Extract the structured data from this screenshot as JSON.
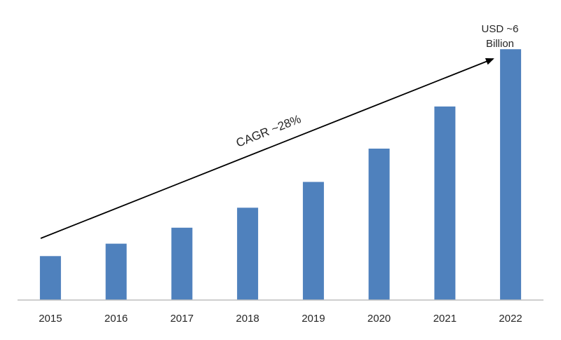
{
  "chart_data": {
    "type": "bar",
    "categories": [
      "2015",
      "2016",
      "2017",
      "2018",
      "2019",
      "2020",
      "2021",
      "2022"
    ],
    "values": [
      0.99,
      1.27,
      1.63,
      2.08,
      2.66,
      3.41,
      4.36,
      5.65
    ],
    "title": "",
    "xlabel": "",
    "ylabel": "",
    "ylim": [
      0,
      6
    ],
    "grid": false,
    "legend": "none",
    "annotations": {
      "cagr": "CAGR ~28%",
      "end_value_line1": "USD ~6",
      "end_value_line2": "Billion"
    }
  },
  "colors": {
    "bar": "#4f81bd",
    "axis": "#bfbfbf",
    "arrow": "#000000",
    "text": "#262626"
  }
}
